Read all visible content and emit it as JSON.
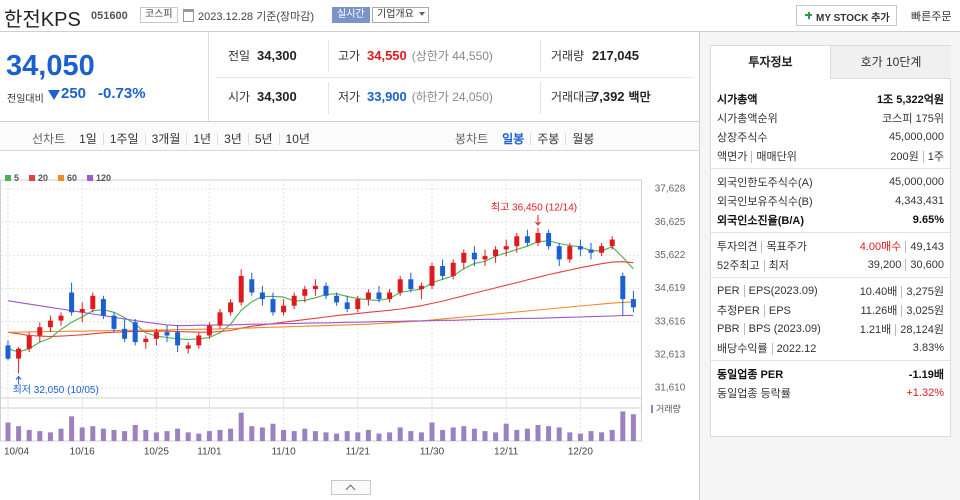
{
  "header": {
    "name": "한전KPS",
    "code": "051600",
    "market": "코스피",
    "date": "2023.12.28 기준(장마감)",
    "realtime": "실시간",
    "company_info": "기업개요",
    "my_stock": "MY STOCK 추가",
    "quick_order": "빠른주문"
  },
  "quote": {
    "price": "34,050",
    "change_label": "전일대비",
    "change": "250",
    "change_rate": "-0.73%",
    "color": "#1b5fd1",
    "rows": [
      [
        {
          "label": "전일",
          "value": "34,300"
        },
        {
          "label": "고가",
          "value": "34,550",
          "note": "(상한가 44,550)",
          "color": "#e0191f"
        },
        {
          "label": "거래량",
          "value": "217,045"
        }
      ],
      [
        {
          "label": "시가",
          "value": "34,300"
        },
        {
          "label": "저가",
          "value": "33,900",
          "note": "(하한가 24,050)",
          "color": "#1b5fd1"
        },
        {
          "label": "거래대금",
          "value": "7,392",
          "unit": "백만"
        }
      ]
    ]
  },
  "chart_tabs": {
    "line_chart": "선차트",
    "line_periods": [
      "1일",
      "1주일",
      "3개월",
      "1년",
      "3년",
      "5년",
      "10년"
    ],
    "candle_chart": "봉차트",
    "candle_periods": [
      "일봉",
      "주봉",
      "월봉"
    ]
  },
  "chart_data": {
    "type": "candlestick",
    "categories": [
      "10/04",
      null,
      null,
      null,
      null,
      null,
      null,
      "10/16",
      null,
      null,
      null,
      null,
      null,
      null,
      "10/25",
      null,
      null,
      null,
      null,
      "11/01",
      null,
      null,
      null,
      null,
      null,
      null,
      "11/10",
      null,
      null,
      null,
      null,
      null,
      null,
      "11/21",
      null,
      null,
      null,
      null,
      null,
      null,
      "11/30",
      null,
      null,
      null,
      null,
      null,
      null,
      "12/11",
      null,
      null,
      null,
      null,
      null,
      null,
      "12/20",
      null,
      null,
      null,
      null,
      null
    ],
    "open": [
      32900,
      32500,
      32800,
      33200,
      33450,
      33650,
      34500,
      33900,
      34000,
      34300,
      33800,
      33400,
      33600,
      33000,
      33100,
      33300,
      33300,
      32800,
      32900,
      33200,
      33500,
      33900,
      34200,
      34900,
      34500,
      34300,
      33900,
      34100,
      34400,
      34600,
      34700,
      34400,
      34200,
      34000,
      34300,
      34500,
      34300,
      34500,
      34900,
      34600,
      34700,
      35300,
      35000,
      35400,
      35700,
      35500,
      35600,
      35800,
      35900,
      36200,
      36000,
      36300,
      35900,
      35500,
      35900,
      35800,
      35700,
      35900,
      35000,
      34300
    ],
    "high": [
      33050,
      32850,
      33300,
      33600,
      33800,
      33900,
      34800,
      34200,
      34500,
      34400,
      33900,
      33700,
      33700,
      33200,
      33400,
      33500,
      33500,
      33000,
      33300,
      33600,
      34000,
      34300,
      35200,
      35100,
      34700,
      34500,
      34300,
      34500,
      34700,
      34900,
      34800,
      34500,
      34400,
      34400,
      34600,
      34700,
      34600,
      35000,
      35100,
      34800,
      35400,
      35500,
      35500,
      35800,
      35900,
      35800,
      35900,
      36100,
      36300,
      36400,
      36450,
      36400,
      36000,
      36000,
      36100,
      36000,
      36000,
      36200,
      35100,
      34550
    ],
    "low": [
      32450,
      32050,
      32700,
      33000,
      33300,
      33500,
      33800,
      33600,
      33900,
      33700,
      33300,
      33000,
      32900,
      32800,
      32900,
      33000,
      32700,
      32650,
      32800,
      33100,
      33400,
      33800,
      34100,
      34400,
      34100,
      33800,
      33800,
      34000,
      34200,
      34400,
      34300,
      34100,
      33900,
      33900,
      34100,
      34200,
      34200,
      34400,
      34500,
      34300,
      34600,
      34900,
      34900,
      35200,
      35300,
      35300,
      35400,
      35600,
      35700,
      35900,
      35900,
      35800,
      35300,
      35400,
      35600,
      35500,
      35600,
      35800,
      33800,
      33900
    ],
    "close": [
      32500,
      32800,
      33200,
      33450,
      33650,
      33800,
      33900,
      34000,
      34400,
      33800,
      33400,
      33100,
      33000,
      33100,
      33300,
      33200,
      32900,
      32900,
      33200,
      33500,
      33900,
      34200,
      35000,
      34500,
      34300,
      33900,
      34100,
      34400,
      34600,
      34700,
      34400,
      34200,
      34000,
      34300,
      34500,
      34300,
      34500,
      34900,
      34600,
      34700,
      35300,
      35000,
      35400,
      35700,
      35500,
      35600,
      35800,
      35900,
      36200,
      36000,
      36300,
      35900,
      35500,
      35900,
      35800,
      35700,
      35900,
      36100,
      34300,
      34050
    ],
    "up_color": "#e0191f",
    "down_color": "#1b5fd1",
    "ylim": [
      31400,
      37750
    ],
    "yticks": [
      {
        "value": 31610,
        "label": "31,610"
      },
      {
        "value": 32613,
        "label": "32,613"
      },
      {
        "value": 33616,
        "label": "33,616"
      },
      {
        "value": 34619,
        "label": "34,619"
      },
      {
        "value": 35622,
        "label": "35,622"
      },
      {
        "value": 36625,
        "label": "36,625"
      },
      {
        "value": 37628,
        "label": "37,628"
      }
    ],
    "grid": true,
    "moving_averages": [
      {
        "name": "5",
        "color": "#4caf50",
        "values": [
          32800,
          32700,
          32800,
          33000,
          33120,
          33380,
          33600,
          33760,
          33950,
          33980,
          33900,
          33740,
          33540,
          33280,
          33180,
          33140,
          33100,
          33080,
          33100,
          33140,
          33280,
          33540,
          33960,
          34220,
          34380,
          34380,
          34360,
          34240,
          34260,
          34340,
          34440,
          34460,
          34380,
          34320,
          34280,
          34260,
          34320,
          34500,
          34560,
          34600,
          34800,
          34900,
          35000,
          35220,
          35380,
          35440,
          35600,
          35700,
          35800,
          35900,
          36040,
          36060,
          35980,
          35920,
          35880,
          35760,
          35760,
          35880,
          35560,
          35210
        ]
      },
      {
        "name": "20",
        "color": "#e5413a",
        "values": [
          33300,
          33250,
          33200,
          33180,
          33170,
          33180,
          33200,
          33220,
          33250,
          33280,
          33300,
          33310,
          33320,
          33320,
          33330,
          33330,
          33320,
          33310,
          33300,
          33300,
          33320,
          33350,
          33420,
          33480,
          33520,
          33560,
          33600,
          33640,
          33680,
          33720,
          33760,
          33800,
          33830,
          33860,
          33900,
          33930,
          33960,
          34000,
          34050,
          34100,
          34170,
          34240,
          34320,
          34400,
          34480,
          34560,
          34640,
          34720,
          34800,
          34880,
          34960,
          35040,
          35110,
          35180,
          35250,
          35310,
          35370,
          35420,
          35430,
          35400
        ]
      },
      {
        "name": "60",
        "color": "#f08a24",
        "values": [
          33300,
          33300,
          33310,
          33310,
          33320,
          33320,
          33330,
          33330,
          33340,
          33340,
          33350,
          33350,
          33360,
          33360,
          33370,
          33370,
          33380,
          33380,
          33390,
          33390,
          33400,
          33410,
          33420,
          33430,
          33440,
          33450,
          33460,
          33470,
          33480,
          33490,
          33500,
          33510,
          33520,
          33530,
          33540,
          33560,
          33580,
          33600,
          33620,
          33640,
          33670,
          33700,
          33730,
          33760,
          33790,
          33820,
          33850,
          33880,
          33910,
          33940,
          33970,
          34000,
          34030,
          34060,
          34090,
          34120,
          34150,
          34180,
          34200,
          34210
        ]
      },
      {
        "name": "120",
        "color": "#9b59c9",
        "values": [
          34250,
          34200,
          34150,
          34100,
          34050,
          34000,
          33950,
          33900,
          33850,
          33800,
          33750,
          33700,
          33650,
          33600,
          33560,
          33520,
          33500,
          33500,
          33510,
          33510,
          33520,
          33520,
          33530,
          33540,
          33540,
          33550,
          33560,
          33560,
          33570,
          33580,
          33580,
          33590,
          33600,
          33600,
          33610,
          33620,
          33620,
          33630,
          33640,
          33640,
          33650,
          33660,
          33660,
          33670,
          33680,
          33690,
          33690,
          33700,
          33710,
          33720,
          33720,
          33730,
          33740,
          33750,
          33760,
          33770,
          33780,
          33790,
          33800,
          33810
        ]
      }
    ],
    "volume": {
      "name": "거래량",
      "color": "#9d80c0",
      "ylim": [
        0,
        300000
      ],
      "values": [
        150000,
        120000,
        90000,
        80000,
        70000,
        100000,
        200000,
        110000,
        120000,
        100000,
        90000,
        80000,
        130000,
        90000,
        70000,
        80000,
        100000,
        70000,
        60000,
        80000,
        90000,
        100000,
        230000,
        120000,
        110000,
        140000,
        90000,
        80000,
        100000,
        80000,
        70000,
        60000,
        80000,
        70000,
        90000,
        60000,
        70000,
        110000,
        80000,
        70000,
        150000,
        90000,
        110000,
        120000,
        100000,
        80000,
        70000,
        140000,
        90000,
        100000,
        130000,
        120000,
        110000,
        70000,
        60000,
        80000,
        70000,
        90000,
        240000,
        217045
      ]
    },
    "high_label": {
      "text": "최고 36,450 (12/14)",
      "color": "#e0191f"
    },
    "low_label": {
      "text": "최저 32,050 (10/05)",
      "color": "#1b5fd1"
    }
  },
  "side_panel": {
    "tabs": [
      "투자정보",
      "호가 10단계"
    ],
    "groups": [
      [
        {
          "label": [
            "시가총액"
          ],
          "value": [
            "1조 5,322억원"
          ],
          "strong": true
        },
        {
          "label": [
            "시가총액순위"
          ],
          "value": [
            "코스피 175위"
          ]
        },
        {
          "label": [
            "상장주식수"
          ],
          "value": [
            "45,000,000"
          ]
        },
        {
          "label": [
            "액면가",
            "매매단위"
          ],
          "value": [
            "200원",
            "1주"
          ]
        }
      ],
      [
        {
          "label": [
            "외국인한도주식수(A)"
          ],
          "value": [
            "45,000,000"
          ]
        },
        {
          "label": [
            "외국인보유주식수(B)"
          ],
          "value": [
            "4,343,431"
          ]
        },
        {
          "label": [
            "외국인소진율(B/A)"
          ],
          "value": [
            "9.65%"
          ],
          "strong": true
        }
      ],
      [
        {
          "label": [
            "투자의견",
            "목표주가"
          ],
          "value": [
            "4.00매수",
            "49,143"
          ],
          "value_color": "#e0191f"
        },
        {
          "label": [
            "52주최고",
            "최저"
          ],
          "value": [
            "39,200",
            "30,600"
          ]
        }
      ],
      [
        {
          "label": [
            "PER",
            "EPS(2023.09)"
          ],
          "value": [
            "10.40배",
            "3,275원"
          ]
        },
        {
          "label": [
            "추정PER",
            "EPS"
          ],
          "value": [
            "11.26배",
            "3,025원"
          ]
        },
        {
          "label": [
            "PBR",
            "BPS (2023.09)"
          ],
          "value": [
            "1.21배",
            "28,124원"
          ]
        },
        {
          "label": [
            "배당수익률",
            "2022.12"
          ],
          "value": [
            "3.83%"
          ]
        }
      ],
      [
        {
          "label": [
            "동일업종 PER"
          ],
          "value": [
            "-1.19배"
          ],
          "strong": true
        },
        {
          "label": [
            "동일업종 등락률"
          ],
          "value": [
            "+1.32%"
          ],
          "value_color": "#e0191f"
        }
      ]
    ]
  }
}
